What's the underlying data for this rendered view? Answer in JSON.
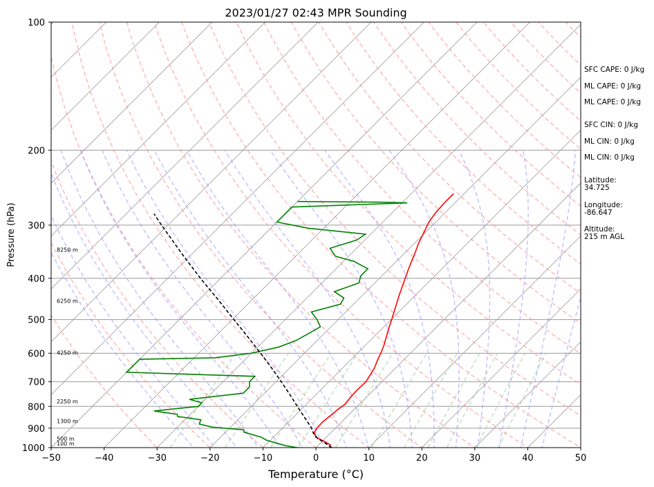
{
  "chart_data": {
    "type": "skew-t sounding",
    "title": "2023/01/27 02:43 MPR Sounding",
    "xlabel": "Temperature (°C)",
    "ylabel": "Pressure (hPa)",
    "xlim": [
      -50,
      50
    ],
    "ylim_pressure": [
      1000,
      100
    ],
    "y_scale": "log",
    "x_ticks": [
      "−50",
      "−40",
      "−30",
      "−20",
      "−10",
      "0",
      "10",
      "20",
      "30",
      "40",
      "50"
    ],
    "y_ticks": [
      "100",
      "200",
      "300",
      "400",
      "500",
      "600",
      "700",
      "800",
      "900",
      "1000"
    ],
    "grid": true,
    "series": [
      {
        "name": "",
        "role": "temperature",
        "color": "#ff0000",
        "points": [
          [
            1000,
            2.6
          ],
          [
            985,
            2.2
          ],
          [
            965,
            0.2
          ],
          [
            945,
            -2.0
          ],
          [
            920,
            -3.2
          ],
          [
            900,
            -3.5
          ],
          [
            870,
            -3.6
          ],
          [
            840,
            -3.3
          ],
          [
            815,
            -3.1
          ],
          [
            790,
            -2.7
          ],
          [
            760,
            -3.0
          ],
          [
            730,
            -3.1
          ],
          [
            700,
            -3.0
          ],
          [
            675,
            -3.5
          ],
          [
            650,
            -4.0
          ],
          [
            620,
            -5.0
          ],
          [
            600,
            -5.6
          ],
          [
            575,
            -6.5
          ],
          [
            550,
            -7.6
          ],
          [
            520,
            -9.0
          ],
          [
            500,
            -9.9
          ],
          [
            470,
            -11.4
          ],
          [
            440,
            -13.0
          ],
          [
            410,
            -14.6
          ],
          [
            380,
            -16.3
          ],
          [
            350,
            -18.0
          ],
          [
            330,
            -19.3
          ],
          [
            310,
            -20.4
          ],
          [
            295,
            -21.3
          ],
          [
            280,
            -21.8
          ],
          [
            265,
            -22.0
          ],
          [
            253,
            -22.0
          ]
        ]
      },
      {
        "name": "",
        "role": "dewpoint",
        "color": "#008000",
        "points": [
          [
            1000,
            -3.5
          ],
          [
            990,
            -6.0
          ],
          [
            975,
            -8.5
          ],
          [
            960,
            -10.8
          ],
          [
            945,
            -12.3
          ],
          [
            920,
            -16.5
          ],
          [
            908,
            -17.0
          ],
          [
            895,
            -23.5
          ],
          [
            880,
            -26.5
          ],
          [
            860,
            -27.0
          ],
          [
            845,
            -32.0
          ],
          [
            835,
            -32.5
          ],
          [
            820,
            -37.5
          ],
          [
            800,
            -30.0
          ],
          [
            785,
            -30.0
          ],
          [
            770,
            -33.0
          ],
          [
            745,
            -24.0
          ],
          [
            720,
            -24.0
          ],
          [
            700,
            -25.0
          ],
          [
            680,
            -25.0
          ],
          [
            665,
            -50.0
          ],
          [
            630,
            -50.0
          ],
          [
            620,
            -50.0
          ],
          [
            615,
            -36.0
          ],
          [
            600,
            -30.0
          ],
          [
            580,
            -26.0
          ],
          [
            560,
            -24.0
          ],
          [
            540,
            -23.0
          ],
          [
            520,
            -22.0
          ],
          [
            500,
            -24.0
          ],
          [
            480,
            -26.5
          ],
          [
            460,
            -22.5
          ],
          [
            445,
            -23.0
          ],
          [
            430,
            -26.0
          ],
          [
            410,
            -23.0
          ],
          [
            395,
            -24.0
          ],
          [
            380,
            -24.0
          ],
          [
            365,
            -28.0
          ],
          [
            355,
            -32.5
          ],
          [
            340,
            -35.0
          ],
          [
            325,
            -31.5
          ],
          [
            315,
            -31.0
          ],
          [
            305,
            -43.0
          ],
          [
            295,
            -50.0
          ],
          [
            285,
            -50.0
          ],
          [
            278,
            -50.0
          ],
          [
            272,
            -50.0
          ],
          [
            266,
            -29.0
          ],
          [
            265,
            -34.0
          ],
          [
            264,
            -50.0
          ]
        ]
      },
      {
        "name": "",
        "role": "parcel",
        "color": "#000000",
        "points": [
          [
            1000,
            3.0
          ],
          [
            975,
            0.8
          ],
          [
            950,
            -1.5
          ],
          [
            925,
            -3.2
          ],
          [
            900,
            -4.5
          ],
          [
            850,
            -7.8
          ],
          [
            800,
            -11.3
          ],
          [
            750,
            -15.0
          ],
          [
            700,
            -19.0
          ],
          [
            650,
            -23.4
          ],
          [
            600,
            -28.3
          ],
          [
            550,
            -33.7
          ],
          [
            500,
            -39.7
          ],
          [
            450,
            -46.3
          ],
          [
            400,
            -53.8
          ],
          [
            350,
            -62.0
          ],
          [
            300,
            -71.2
          ],
          [
            282,
            -74.8
          ]
        ]
      }
    ],
    "height_markers": [
      {
        "label": "100 m",
        "pressure": 977
      },
      {
        "label": "500 m",
        "pressure": 953
      },
      {
        "label": "1300 m",
        "pressure": 866
      },
      {
        "label": "2250 m",
        "pressure": 778
      },
      {
        "label": "4250 m",
        "pressure": 598
      },
      {
        "label": "6250 m",
        "pressure": 452
      },
      {
        "label": "8250 m",
        "pressure": 343
      }
    ],
    "reference_lines": {
      "dry_adiabats_color": "#ff9999",
      "moist_adiabats_color": "#9999ff",
      "mixing_ratio_color": "#99cc99",
      "isotherm_color": "#999999"
    },
    "annotations": [
      [
        "SFC CAPE: 0 J/kg"
      ],
      [
        "ML CAPE: 0 J/kg"
      ],
      [
        "ML CAPE: 0 J/kg"
      ],
      [
        "SFC CIN: 0 J/kg"
      ],
      [
        "ML CIN: 0 J/kg"
      ],
      [
        "ML CIN: 0 J/kg"
      ],
      [
        "Latitude:",
        "34.725"
      ],
      [
        "Longitude:",
        "-86.647"
      ],
      [
        "Altitude:",
        "215 m AGL"
      ]
    ]
  }
}
